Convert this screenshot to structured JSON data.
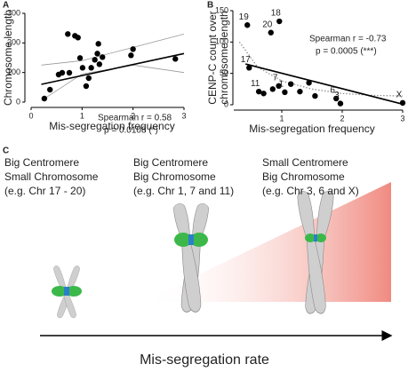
{
  "panel_letters": [
    "A",
    "B",
    "C"
  ],
  "chart_data": [
    {
      "type": "scatter",
      "ylabel": "Chromosome length",
      "xlabel": "Mis-segregation frequency",
      "annotations": [
        "Spearman r = 0.58",
        "p = 0.0108 (*)"
      ],
      "x": [
        0.37,
        0.54,
        0.61,
        0.75,
        0.72,
        0.86,
        0.92,
        0.96,
        1.01,
        1.08,
        1.13,
        1.18,
        1.25,
        1.3,
        1.32,
        1.34,
        1.4,
        2.0,
        1.96,
        2.83,
        0.26
      ],
      "values": [
        42,
        93,
        99,
        99,
        230,
        224,
        218,
        149,
        116,
        54,
        81,
        116,
        143,
        164,
        197,
        128,
        152,
        179,
        158,
        146,
        12
      ],
      "fit": {
        "x": [
          0.2,
          3
        ],
        "values": [
          60,
          164
        ]
      },
      "band": {
        "x": [
          0.2,
          1,
          2,
          3
        ],
        "upper": [
          125,
          140,
          185,
          230
        ],
        "lower": [
          5,
          95,
          125,
          100
        ]
      },
      "color": "#000000",
      "xlim": [
        0,
        3
      ],
      "ylim": [
        0,
        300
      ],
      "xticks": [
        0,
        1,
        2,
        3
      ],
      "yticks": [
        0,
        100,
        200,
        300
      ]
    },
    {
      "type": "scatter",
      "ylabel": [
        "CENP-C count over",
        "chromosome length"
      ],
      "xlabel": "Mis-segregation frequency",
      "annotations": [
        "Spearman r = -0.73",
        "p = 0.0005 (***)"
      ],
      "x": [
        0.43,
        0.82,
        0.96,
        0.46,
        0.62,
        0.7,
        0.85,
        0.95,
        1.05,
        1.15,
        1.3,
        1.45,
        1.55,
        1.9,
        1.97,
        3.0
      ],
      "values": [
        127,
        115,
        133,
        59,
        21,
        18,
        25,
        30,
        20,
        33,
        21,
        35,
        14,
        10,
        2,
        3
      ],
      "point_labels": [
        "19",
        "20",
        "18",
        "17",
        "11",
        null,
        null,
        "7",
        "1",
        null,
        null,
        null,
        null,
        "6",
        "3",
        "X"
      ],
      "fit": {
        "x": [
          0.4,
          3
        ],
        "values": [
          65,
          1
        ]
      },
      "curve": {
        "x": [
          0.3,
          0.6,
          1,
          1.5,
          2,
          2.5,
          3
        ],
        "values": [
          100,
          60,
          38,
          25,
          18,
          15,
          14
        ]
      },
      "color": "#000000",
      "xlim": [
        0,
        3
      ],
      "ylim": [
        0,
        150
      ],
      "xticks": [
        1,
        2,
        3
      ],
      "yticks": [
        0,
        50,
        100,
        150
      ]
    }
  ],
  "diagram": {
    "columns": [
      {
        "lines": [
          "Big Centromere",
          "Small Chromosome",
          "(e.g. Chr 17 - 20)"
        ]
      },
      {
        "lines": [
          "Big Centromere",
          "Big Chromosome",
          "(e.g. Chr 1, 7 and 11)"
        ]
      },
      {
        "lines": [
          "Small Centromere",
          "Big Chromosome",
          "(e.g. Chr 3, 6 and X)"
        ]
      }
    ],
    "arrow_label": "Mis-segregation rate"
  }
}
